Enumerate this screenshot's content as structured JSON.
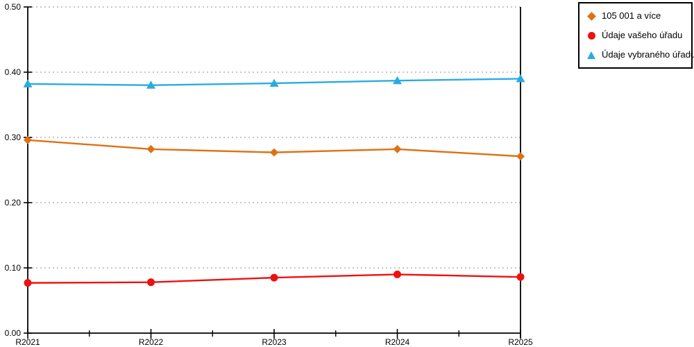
{
  "chart_data": {
    "type": "line",
    "title": "",
    "xlabel": "",
    "ylabel": "",
    "categories": [
      "R2021",
      "R2022",
      "R2023",
      "R2024",
      "R2025"
    ],
    "series": [
      {
        "name": "105 001 a více",
        "marker": "diamond",
        "color": "#de7114",
        "values": [
          0.296,
          0.282,
          0.277,
          0.282,
          0.271
        ]
      },
      {
        "name": "Údaje vašeho úřadu",
        "marker": "circle",
        "color": "#ee1111",
        "values": [
          0.077,
          0.078,
          0.085,
          0.09,
          0.086
        ]
      },
      {
        "name": "Údaje vybraného úřadu",
        "marker": "triangle",
        "color": "#29abe2",
        "values": [
          0.382,
          0.38,
          0.383,
          0.387,
          0.39
        ]
      }
    ],
    "ylim": [
      0.0,
      0.5
    ],
    "yticks": [
      0.0,
      0.1,
      0.2,
      0.3,
      0.4,
      0.5
    ],
    "ytick_labels": [
      "0.00",
      "0.10",
      "0.20",
      "0.30",
      "0.40",
      "0.50"
    ],
    "grid": "horizontal-dotted",
    "grid_color": "#b3b3b3",
    "axis_color": "#000000",
    "legend_position": "top-right",
    "legend_border_color": "#000000"
  },
  "legend": {
    "items": [
      {
        "label": "105 001 a více",
        "icon": "diamond-marker-icon"
      },
      {
        "label": "Údaje vašeho úřadu",
        "icon": "circle-marker-icon"
      },
      {
        "label": "Údaje vybraného úřadu",
        "icon": "triangle-marker-icon"
      }
    ]
  }
}
